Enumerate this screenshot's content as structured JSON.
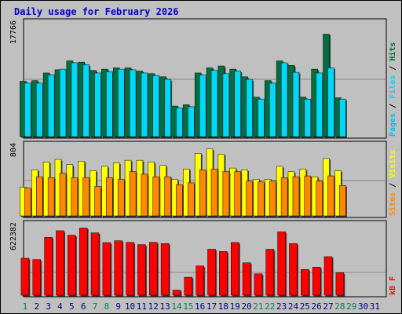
{
  "title": "Daily usage for February 2026",
  "chart_data": [
    {
      "type": "bar",
      "panel": "pages-files-hits",
      "ymax_label": "17766",
      "ylim": [
        0,
        17766
      ],
      "categories": [
        "1",
        "2",
        "3",
        "4",
        "5",
        "6",
        "7",
        "8",
        "9",
        "10",
        "11",
        "12",
        "13",
        "14",
        "15",
        "16",
        "17",
        "18",
        "19",
        "20",
        "21",
        "22",
        "23",
        "24",
        "25",
        "26",
        "27",
        "28",
        "29",
        "30",
        "31"
      ],
      "series": [
        {
          "name": "Hits",
          "color": "#007040",
          "values": [
            8700,
            8800,
            10000,
            10500,
            11900,
            11700,
            10400,
            10600,
            10800,
            10800,
            10300,
            9900,
            9400,
            4800,
            5000,
            10000,
            10800,
            11100,
            10600,
            9400,
            6200,
            8800,
            11900,
            11200,
            6200,
            10600,
            16100,
            6100,
            0,
            0,
            0
          ]
        },
        {
          "name": "Files",
          "color": "#00d8f8",
          "values": [
            8400,
            8400,
            9700,
            10600,
            11600,
            11300,
            10000,
            10200,
            10600,
            10500,
            10000,
            9600,
            9000,
            4500,
            4700,
            9700,
            10400,
            9900,
            10300,
            9000,
            5900,
            8400,
            11600,
            10100,
            5900,
            10000,
            10800,
            5900,
            0,
            0,
            0
          ]
        },
        {
          "name": "Pages",
          "color": "#00c0f0",
          "values": [
            0,
            0,
            0,
            0,
            0,
            0,
            0,
            0,
            0,
            0,
            0,
            0,
            0,
            0,
            0,
            0,
            0,
            0,
            0,
            0,
            0,
            0,
            0,
            0,
            0,
            0,
            0,
            0,
            0,
            0,
            0
          ]
        }
      ],
      "legend": [
        "Hits",
        "Files",
        "Pages"
      ],
      "legend_separator": " / "
    },
    {
      "type": "bar",
      "panel": "visits-sites",
      "ymax_label": "804",
      "ylim": [
        0,
        804
      ],
      "categories": [
        "1",
        "2",
        "3",
        "4",
        "5",
        "6",
        "7",
        "8",
        "9",
        "10",
        "11",
        "12",
        "13",
        "14",
        "15",
        "16",
        "17",
        "18",
        "19",
        "20",
        "21",
        "22",
        "23",
        "24",
        "25",
        "26",
        "27",
        "28",
        "29",
        "30",
        "31"
      ],
      "series": [
        {
          "name": "Visits",
          "color": "#ffff00",
          "values": [
            330,
            530,
            620,
            650,
            590,
            630,
            520,
            570,
            610,
            640,
            640,
            620,
            580,
            420,
            540,
            720,
            770,
            710,
            550,
            530,
            420,
            420,
            570,
            510,
            540,
            450,
            660,
            520,
            0,
            0,
            0
          ]
        },
        {
          "name": "Sites",
          "color": "#ff8800",
          "values": [
            320,
            450,
            440,
            490,
            440,
            440,
            340,
            440,
            420,
            510,
            480,
            450,
            450,
            360,
            380,
            530,
            540,
            510,
            510,
            400,
            390,
            400,
            440,
            450,
            460,
            400,
            460,
            350,
            0,
            0,
            0
          ]
        }
      ],
      "legend": [
        "Visits",
        "Sites"
      ],
      "legend_separator": " / "
    },
    {
      "type": "bar",
      "panel": "kbytes",
      "ymax_label": "622382",
      "ylim": [
        0,
        622382
      ],
      "categories": [
        "1",
        "2",
        "3",
        "4",
        "5",
        "6",
        "7",
        "8",
        "9",
        "10",
        "11",
        "12",
        "13",
        "14",
        "15",
        "16",
        "17",
        "18",
        "19",
        "20",
        "21",
        "22",
        "23",
        "24",
        "25",
        "26",
        "27",
        "28",
        "29",
        "30",
        "31"
      ],
      "series": [
        {
          "name": "KBytes",
          "color": "#ff0000",
          "values": [
            329000,
            317000,
            515000,
            574000,
            534000,
            598000,
            555000,
            468000,
            485000,
            470000,
            450000,
            470000,
            460000,
            45000,
            160000,
            260000,
            409000,
            389000,
            469000,
            288000,
            190000,
            409000,
            565000,
            460000,
            229000,
            250000,
            343000,
            200000,
            0,
            0,
            0
          ]
        }
      ],
      "legend_label": "kB F"
    }
  ],
  "colors": {
    "weekend_tick": "#00805c",
    "weekday_tick": "#000080",
    "title": "#0000cc"
  },
  "weekend_days": [
    "1",
    "7",
    "8",
    "14",
    "15",
    "21",
    "22",
    "28",
    "29"
  ]
}
